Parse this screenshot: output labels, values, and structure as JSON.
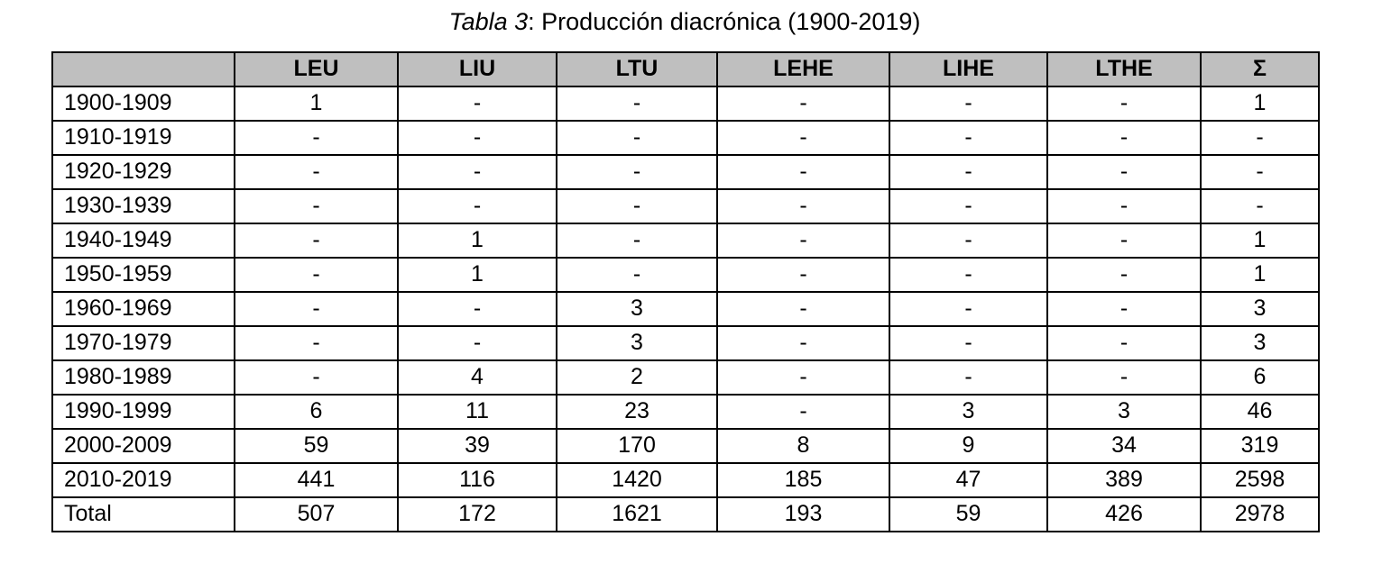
{
  "caption": {
    "italic_part": "Tabla 3",
    "rest_part": ": Producción diacrónica (1900-2019)"
  },
  "colors": {
    "header_bg": "#bfbfbf",
    "border": "#000000",
    "text": "#000000",
    "page_bg": "#ffffff"
  },
  "table": {
    "columns": [
      "",
      "LEU",
      "LIU",
      "LTU",
      "LEHE",
      "LIHE",
      "LTHE",
      "Σ"
    ],
    "rows": [
      {
        "label": "1900-1909",
        "values": [
          "1",
          "-",
          "-",
          "-",
          "-",
          "-",
          "1"
        ]
      },
      {
        "label": "1910-1919",
        "values": [
          "-",
          "-",
          "-",
          "-",
          "-",
          "-",
          "-"
        ]
      },
      {
        "label": "1920-1929",
        "values": [
          "-",
          "-",
          "-",
          "-",
          "-",
          "-",
          "-"
        ]
      },
      {
        "label": "1930-1939",
        "values": [
          "-",
          "-",
          "-",
          "-",
          "-",
          "-",
          "-"
        ]
      },
      {
        "label": "1940-1949",
        "values": [
          "-",
          "1",
          "-",
          "-",
          "-",
          "-",
          "1"
        ]
      },
      {
        "label": "1950-1959",
        "values": [
          "-",
          "1",
          "-",
          "-",
          "-",
          "-",
          "1"
        ]
      },
      {
        "label": "1960-1969",
        "values": [
          "-",
          "-",
          "3",
          "-",
          "-",
          "-",
          "3"
        ]
      },
      {
        "label": "1970-1979",
        "values": [
          "-",
          "-",
          "3",
          "-",
          "-",
          "-",
          "3"
        ]
      },
      {
        "label": "1980-1989",
        "values": [
          "-",
          "4",
          "2",
          "-",
          "-",
          "-",
          "6"
        ]
      },
      {
        "label": "1990-1999",
        "values": [
          "6",
          "11",
          "23",
          "-",
          "3",
          "3",
          "46"
        ]
      },
      {
        "label": "2000-2009",
        "values": [
          "59",
          "39",
          "170",
          "8",
          "9",
          "34",
          "319"
        ]
      },
      {
        "label": "2010-2019",
        "values": [
          "441",
          "116",
          "1420",
          "185",
          "47",
          "389",
          "2598"
        ]
      },
      {
        "label": "Total",
        "values": [
          "507",
          "172",
          "1621",
          "193",
          "59",
          "426",
          "2978"
        ]
      }
    ]
  },
  "chart_data": {
    "type": "table",
    "title": "Tabla 3: Producción diacrónica (1900-2019)",
    "categories": [
      "1900-1909",
      "1910-1919",
      "1920-1929",
      "1930-1939",
      "1940-1949",
      "1950-1959",
      "1960-1969",
      "1970-1979",
      "1980-1989",
      "1990-1999",
      "2000-2009",
      "2010-2019",
      "Total"
    ],
    "series": [
      {
        "name": "LEU",
        "values": [
          1,
          null,
          null,
          null,
          null,
          null,
          null,
          null,
          null,
          6,
          59,
          441,
          507
        ]
      },
      {
        "name": "LIU",
        "values": [
          null,
          null,
          null,
          null,
          1,
          1,
          null,
          null,
          4,
          11,
          39,
          116,
          172
        ]
      },
      {
        "name": "LTU",
        "values": [
          null,
          null,
          null,
          null,
          null,
          null,
          3,
          3,
          2,
          23,
          170,
          1420,
          1621
        ]
      },
      {
        "name": "LEHE",
        "values": [
          null,
          null,
          null,
          null,
          null,
          null,
          null,
          null,
          null,
          null,
          8,
          185,
          193
        ]
      },
      {
        "name": "LIHE",
        "values": [
          null,
          null,
          null,
          null,
          null,
          null,
          null,
          null,
          null,
          3,
          9,
          47,
          59
        ]
      },
      {
        "name": "LTHE",
        "values": [
          null,
          null,
          null,
          null,
          null,
          null,
          null,
          null,
          null,
          3,
          34,
          389,
          426
        ]
      },
      {
        "name": "Σ",
        "values": [
          1,
          null,
          null,
          null,
          1,
          1,
          3,
          3,
          6,
          46,
          319,
          2598,
          2978
        ]
      }
    ],
    "null_display": "-"
  }
}
